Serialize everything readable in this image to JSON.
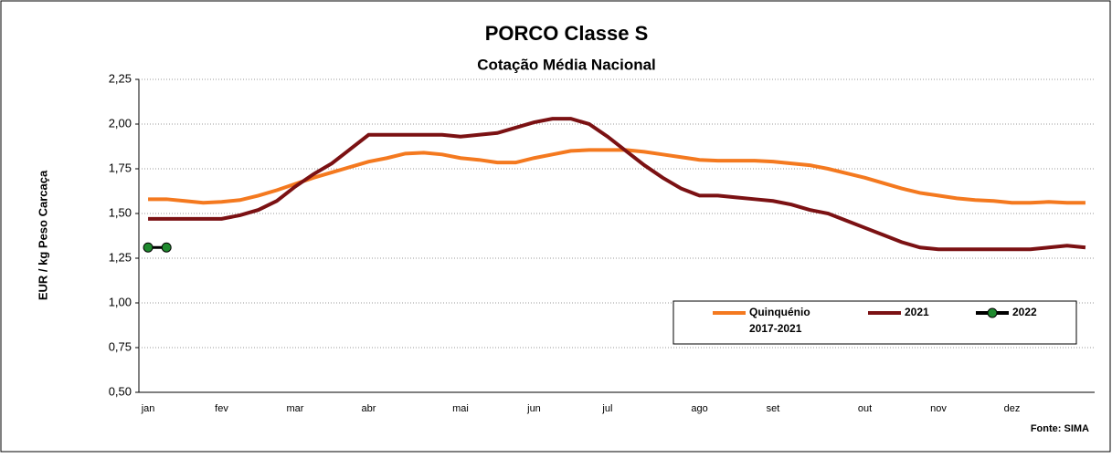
{
  "chart_data": {
    "type": "line",
    "title": "PORCO Classe S",
    "subtitle": "Cotação Média Nacional",
    "y_label": "EUR / kg Peso Carcaça",
    "source": "Fonte: SIMA",
    "categories": [
      "jan",
      null,
      null,
      null,
      "fev",
      null,
      null,
      null,
      "mar",
      null,
      null,
      null,
      "abr",
      null,
      null,
      null,
      null,
      "mai",
      null,
      null,
      null,
      "jun",
      null,
      null,
      null,
      "jul",
      null,
      null,
      null,
      null,
      "ago",
      null,
      null,
      null,
      "set",
      null,
      null,
      null,
      null,
      "out",
      null,
      null,
      null,
      "nov",
      null,
      null,
      null,
      "dez",
      null,
      null,
      null,
      null
    ],
    "series": [
      {
        "name": "Quinquénio 2017-2021",
        "color": "#f4791f",
        "values": [
          1.58,
          1.58,
          1.57,
          1.56,
          1.565,
          1.575,
          1.6,
          1.63,
          1.665,
          1.7,
          1.73,
          1.76,
          1.79,
          1.81,
          1.835,
          1.84,
          1.83,
          1.81,
          1.8,
          1.785,
          1.785,
          1.81,
          1.83,
          1.85,
          1.855,
          1.855,
          1.855,
          1.845,
          1.83,
          1.815,
          1.8,
          1.795,
          1.795,
          1.795,
          1.79,
          1.78,
          1.77,
          1.75,
          1.725,
          1.7,
          1.67,
          1.64,
          1.615,
          1.6,
          1.585,
          1.575,
          1.57,
          1.56,
          1.56,
          1.565,
          1.56,
          1.56
        ]
      },
      {
        "name": "2021",
        "color": "#7b1113",
        "values": [
          1.47,
          1.47,
          1.47,
          1.47,
          1.47,
          1.49,
          1.52,
          1.57,
          1.65,
          1.72,
          1.78,
          1.86,
          1.94,
          1.94,
          1.94,
          1.94,
          1.94,
          1.93,
          1.94,
          1.95,
          1.98,
          2.01,
          2.03,
          2.03,
          2.0,
          1.93,
          1.85,
          1.77,
          1.7,
          1.64,
          1.6,
          1.6,
          1.59,
          1.58,
          1.57,
          1.55,
          1.52,
          1.5,
          1.46,
          1.42,
          1.38,
          1.34,
          1.31,
          1.3,
          1.3,
          1.3,
          1.3,
          1.3,
          1.3,
          1.31,
          1.32,
          1.31
        ]
      },
      {
        "name": "2022",
        "color": "#1f8a2e",
        "markers": true,
        "values": [
          1.31,
          1.31,
          null,
          null,
          null,
          null,
          null,
          null,
          null,
          null,
          null,
          null,
          null,
          null,
          null,
          null,
          null,
          null,
          null,
          null,
          null,
          null,
          null,
          null,
          null,
          null,
          null,
          null,
          null,
          null,
          null,
          null,
          null,
          null,
          null,
          null,
          null,
          null,
          null,
          null,
          null,
          null,
          null,
          null,
          null,
          null,
          null,
          null,
          null,
          null,
          null,
          null
        ]
      }
    ],
    "ylim": [
      0.5,
      2.25
    ],
    "yticks": [
      {
        "value": 0.5,
        "label": "0,50"
      },
      {
        "value": 0.75,
        "label": "0,75"
      },
      {
        "value": 1,
        "label": "1,00"
      },
      {
        "value": 1.25,
        "label": "1,25"
      },
      {
        "value": 1.5,
        "label": "1,50"
      },
      {
        "value": 1.75,
        "label": "1,75"
      },
      {
        "value": 2,
        "label": "2,00"
      },
      {
        "value": 2.25,
        "label": "2,25"
      }
    ],
    "grid": true
  }
}
